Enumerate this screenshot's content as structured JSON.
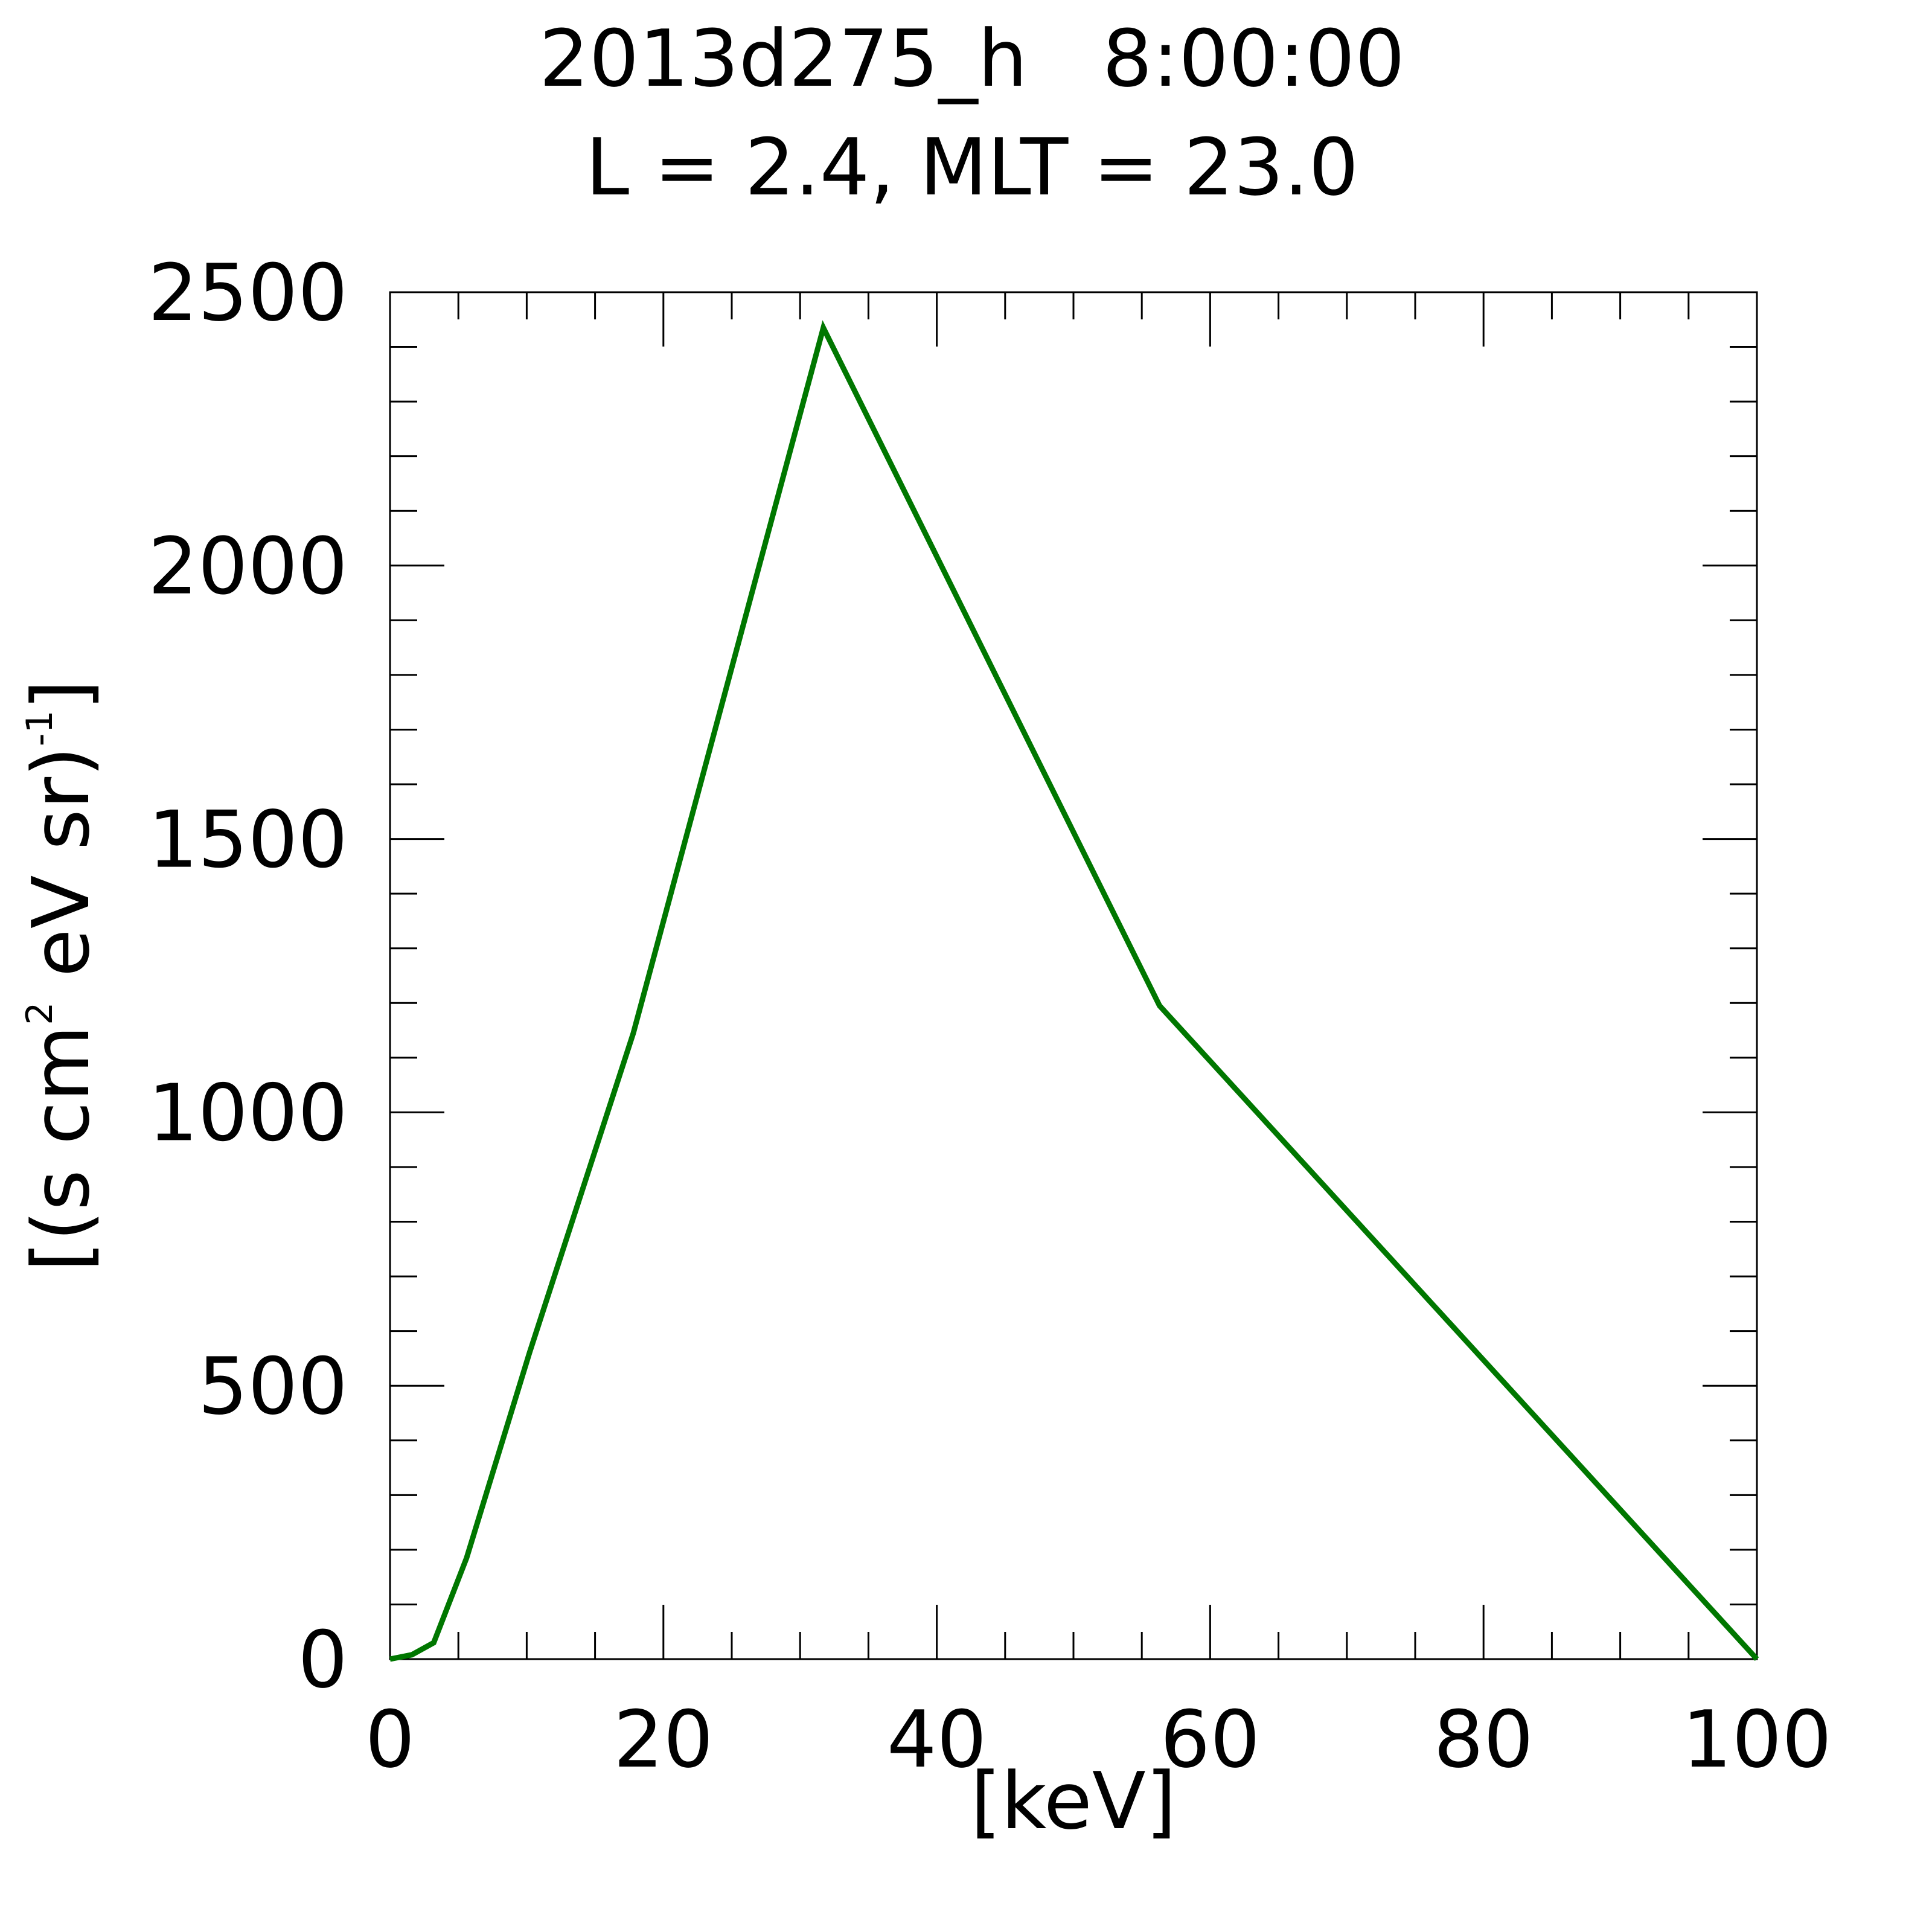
{
  "chart_data": {
    "type": "line",
    "title": "2013d275_h   8:00:00",
    "subtitle": "L = 2.4, MLT = 23.0",
    "xlabel": "[keV]",
    "ylabel": {
      "part1": "[(s cm",
      "sup1": "2",
      "part2": " eV sr)",
      "sup2": "-1",
      "part3": "]"
    },
    "xlim": [
      0,
      100
    ],
    "ylim": [
      0,
      2500
    ],
    "x_ticks": [
      0,
      20,
      40,
      60,
      80,
      100
    ],
    "y_ticks": [
      0,
      500,
      1000,
      1500,
      2000,
      2500
    ],
    "x_tick_labels": [
      "0",
      "20",
      "40",
      "60",
      "80",
      "100"
    ],
    "y_tick_labels": [
      "0",
      "500",
      "1000",
      "1500",
      "2000",
      "2500"
    ],
    "x_minor_step": 5,
    "y_minor_step": 100,
    "grid": false,
    "series": [
      {
        "color": "#007700",
        "points": [
          [
            0.0,
            0
          ],
          [
            1.6,
            8
          ],
          [
            3.2,
            30
          ],
          [
            5.6,
            185
          ],
          [
            10.2,
            560
          ],
          [
            17.8,
            1145
          ],
          [
            31.7,
            2435
          ],
          [
            56.3,
            1195
          ],
          [
            100.0,
            0
          ]
        ]
      }
    ]
  }
}
